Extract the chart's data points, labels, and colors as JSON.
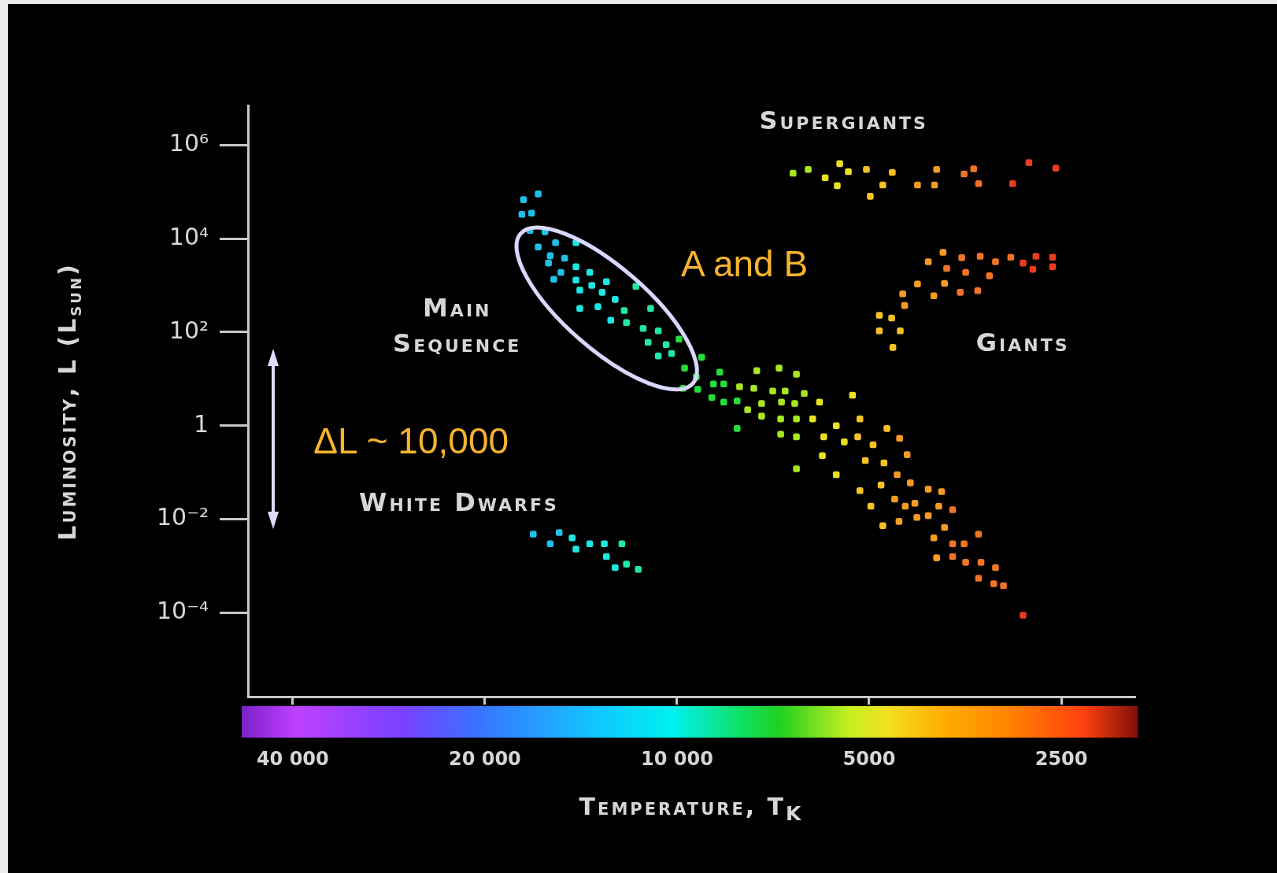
{
  "chart_data": {
    "type": "scatter",
    "xlabel": "Temperature, T$_{K}$",
    "ylabel": "Luminosity, L (L$_{sun}$)",
    "log": "xy",
    "marker": "square",
    "xlim": [
      47000,
      1920
    ],
    "ylim": [
      1.6e-06,
      7000000
    ],
    "xticks": [
      {
        "value": 40000,
        "label": "40 000"
      },
      {
        "value": 20000,
        "label": "20 000"
      },
      {
        "value": 10000,
        "label": "10 000"
      },
      5000,
      2500
    ],
    "yticks": [
      {
        "value": 0.0001,
        "label": "10⁻⁴"
      },
      {
        "value": 0.01,
        "label": "10⁻²"
      },
      1,
      {
        "value": 100,
        "label": "10²"
      },
      {
        "value": 10000,
        "label": "10⁴"
      },
      {
        "value": 1000000,
        "label": "10⁶"
      }
    ],
    "series": [
      {
        "color": "#20bfe8",
        "x": [
          16500,
          17400,
          17500,
          16900,
          17000,
          16100,
          15500,
          16500,
          15800,
          15000,
          15900,
          15200,
          15600,
          16800,
          15800,
          15300
        ],
        "values": [
          90000,
          68000,
          33000,
          35000,
          15000,
          14000,
          8200,
          6600,
          4300,
          3800,
          3000,
          1900,
          1350,
          0.0048,
          0.003,
          0.0052
        ]
      },
      {
        "color": "#1ee6e0",
        "x": [
          14400,
          14400,
          13700,
          14400,
          12900,
          13600,
          14200,
          13100,
          12500,
          14200,
          13300,
          12700,
          14600,
          14400,
          13700,
          13000,
          12900,
          12500
        ],
        "values": [
          8200,
          2500,
          1900,
          1300,
          1200,
          1000,
          790,
          710,
          500,
          320,
          350,
          180,
          0.004,
          0.0023,
          0.003,
          0.003,
          0.0016,
          0.00093
        ]
      },
      {
        "color": "#22e6ac",
        "x": [
          11600,
          12100,
          11000,
          12000,
          11300,
          10700,
          11100,
          10400,
          10700,
          10200,
          12200,
          12000,
          11500
        ],
        "values": [
          950,
          290,
          320,
          160,
          120,
          107,
          61,
          54,
          31,
          35,
          0.003,
          0.0011,
          0.00085
        ]
      },
      {
        "color": "#26dc3c",
        "x": [
          9930,
          9730,
          9150,
          9790,
          9330,
          9280,
          8570,
          8770,
          8450,
          8820,
          8450,
          8050,
          8050
        ],
        "values": [
          71,
          17,
          29,
          6.3,
          11,
          6,
          14,
          7.8,
          7.8,
          4,
          3.2,
          3.4,
          0.87
        ]
      },
      {
        "color": "#a8e622",
        "x": [
          7980,
          7580,
          7500,
          6920,
          7750,
          7370,
          7370,
          7080,
          6770,
          6860,
          6880,
          6880,
          6500,
          6540,
          6500,
          6500,
          6500,
          6320,
          6580,
          6230
        ],
        "values": [
          6.8,
          6.3,
          15,
          17,
          2.2,
          3,
          1.6,
          5.5,
          5.5,
          3.2,
          1.4,
          0.66,
          12.6,
          3,
          1.4,
          0.58,
          0.12,
          4.9,
          250000,
          300000
        ]
      },
      {
        "color": "#e8e024",
        "x": [
          5980,
          6130,
          5890,
          5920,
          5630,
          5310,
          5470,
          5630,
          5860,
          5560,
          5390,
          5610
        ],
        "values": [
          3.2,
          1.4,
          0.58,
          0.23,
          1,
          4.5,
          0.45,
          0.09,
          200000,
          400000,
          270000,
          135000
        ]
      },
      {
        "color": "#f4c224",
        "x": [
          5170,
          5210,
          4930,
          5070,
          4690,
          4740,
          5170,
          4970,
          4760,
          4790,
          5050,
          4600,
          4760,
          4980,
          4820,
          4610,
          4820,
          4470,
          4590
        ],
        "values": [
          1.4,
          0.58,
          0.39,
          0.18,
          0.87,
          0.16,
          0.041,
          0.019,
          0.0073,
          0.054,
          300000,
          260000,
          140000,
          80000,
          230,
          200,
          107,
          107,
          47
        ]
      },
      {
        "color": "#f59a24",
        "x": [
          4480,
          4520,
          4360,
          4560,
          4310,
          4390,
          4490,
          4240,
          4210,
          4040,
          3850,
          3890,
          4040,
          3810,
          3960,
          3920,
          4200,
          3950,
          3920,
          4040,
          3830,
          3810,
          3960,
          4200,
          4430,
          4400
        ],
        "values": [
          0.54,
          0.09,
          0.24,
          0.027,
          0.06,
          0.019,
          0.009,
          0.022,
          0.011,
          0.044,
          0.039,
          0.019,
          0.012,
          0.0067,
          0.004,
          0.0015,
          140000,
          140000,
          300000,
          3200,
          5100,
          1100,
          600,
          1070,
          660,
          370
        ]
      },
      {
        "color": "#f07426",
        "x": [
          3700,
          3700,
          3550,
          3370,
          3700,
          3530,
          3340,
          3170,
          3370,
          3190,
          3080,
          3550,
          3430,
          3370,
          3780,
          3580,
          3530,
          3350,
          3170,
          3240,
          3000,
          3600,
          3380
        ],
        "values": [
          0.016,
          0.003,
          0.003,
          0.0048,
          0.0016,
          0.0012,
          0.0012,
          0.00093,
          0.00055,
          0.00042,
          0.00038,
          240000,
          310000,
          150000,
          2300,
          3900,
          1900,
          4200,
          3200,
          1600,
          4000,
          710,
          770
        ]
      },
      {
        "color": "#e83c22",
        "x": [
          2870,
          2980,
          2810,
          2550,
          2870,
          2740,
          2770,
          2580,
          2580
        ],
        "values": [
          8.9e-05,
          150000,
          420000,
          320000,
          3000,
          4200,
          2200,
          4000,
          2500
        ]
      }
    ],
    "annotations": [
      "Supergiants",
      "Main\nSequence",
      "Giants",
      "White Dwarfs",
      "A and B",
      "ΔL ~ 10,000"
    ]
  }
}
